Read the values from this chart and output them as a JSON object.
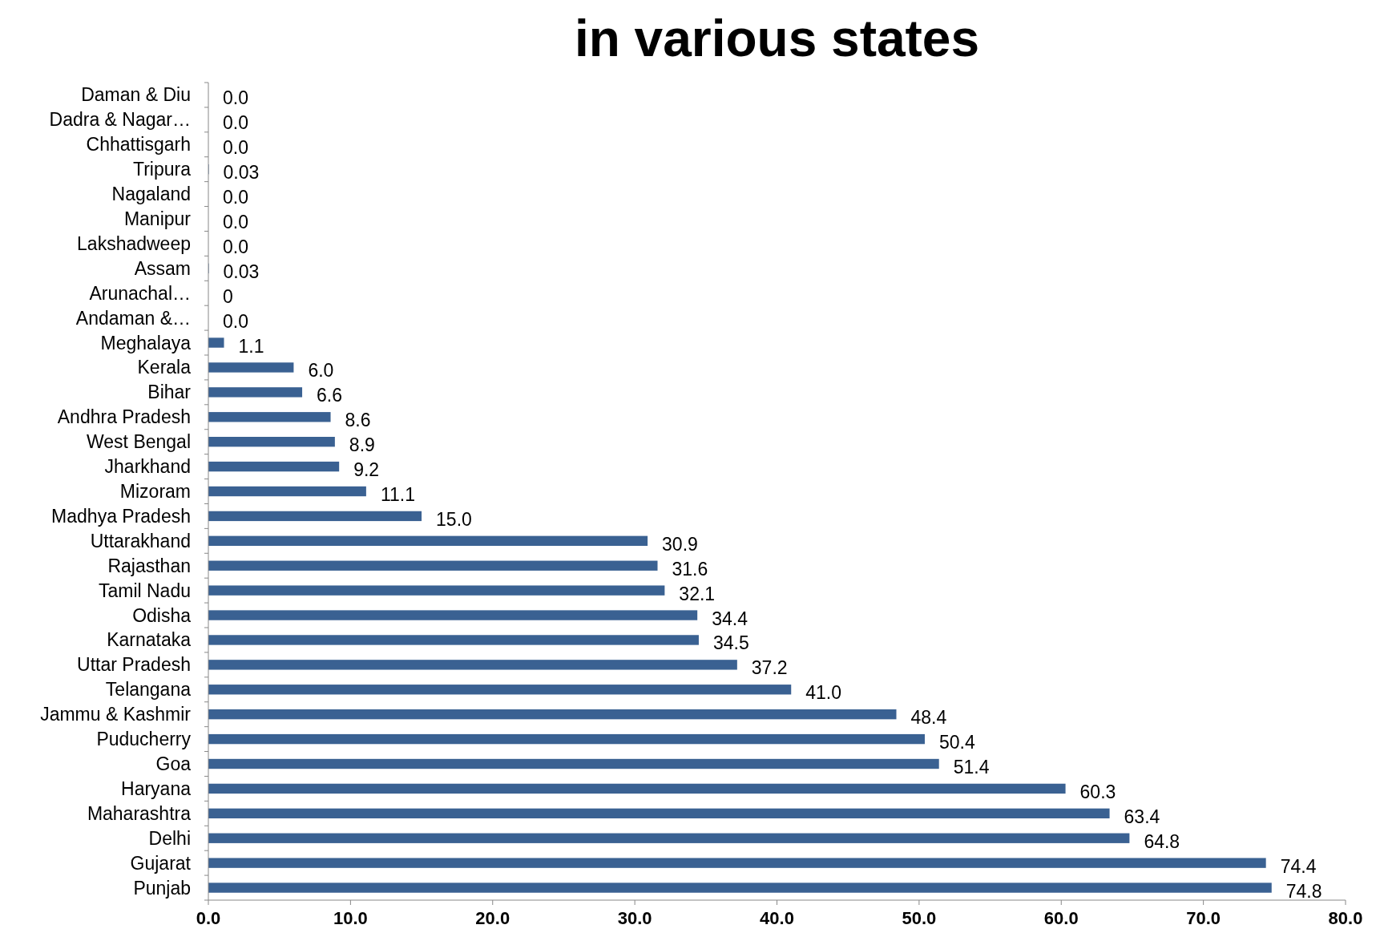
{
  "chart_data": {
    "type": "bar",
    "orientation": "horizontal",
    "title": "in various states",
    "categories": [
      "Daman & Diu",
      "Dadra & Nagar…",
      "Chhattisgarh",
      "Tripura",
      "Nagaland",
      "Manipur",
      "Lakshadweep",
      "Assam",
      "Arunachal…",
      "Andaman &…",
      "Meghalaya",
      "Kerala",
      "Bihar",
      "Andhra Pradesh",
      "West Bengal",
      "Jharkhand",
      "Mizoram",
      "Madhya Pradesh",
      "Uttarakhand",
      "Rajasthan",
      "Tamil Nadu",
      "Odisha",
      "Karnataka",
      "Uttar Pradesh",
      "Telangana",
      "Jammu & Kashmir",
      "Puducherry",
      "Goa",
      "Haryana",
      "Maharashtra",
      "Delhi",
      "Gujarat",
      "Punjab"
    ],
    "values": [
      0,
      0,
      0,
      0.03,
      0,
      0,
      0,
      0.03,
      0,
      0,
      1.1,
      6.0,
      6.6,
      8.6,
      8.9,
      9.2,
      11.1,
      15.0,
      30.9,
      31.6,
      32.1,
      34.4,
      34.5,
      37.2,
      41.0,
      48.4,
      50.4,
      51.4,
      60.3,
      63.4,
      64.8,
      74.4,
      74.8
    ],
    "value_labels": [
      "0.0",
      "0.0",
      "0.0",
      "0.03",
      "0.0",
      "0.0",
      "0.0",
      "0.03",
      "0",
      "0.0",
      "1.1",
      "6.0",
      "6.6",
      "8.6",
      "8.9",
      "9.2",
      "11.1",
      "15.0",
      "30.9",
      "31.6",
      "32.1",
      "34.4",
      "34.5",
      "37.2",
      "41.0",
      "48.4",
      "50.4",
      "51.4",
      "60.3",
      "63.4",
      "64.8",
      "74.4",
      "74.8"
    ],
    "color": "#3a6192",
    "xlim": [
      0,
      80
    ],
    "xticks": [
      {
        "value": 0,
        "label": "0.0"
      },
      {
        "value": 10,
        "label": "10.0"
      },
      {
        "value": 20,
        "label": "20.0"
      },
      {
        "value": 30,
        "label": "30.0"
      },
      {
        "value": 40,
        "label": "40.0"
      },
      {
        "value": 50,
        "label": "50.0"
      },
      {
        "value": 60,
        "label": "60.0"
      },
      {
        "value": 70,
        "label": "70.0"
      },
      {
        "value": 80,
        "label": "80.0"
      }
    ],
    "grid": false
  }
}
